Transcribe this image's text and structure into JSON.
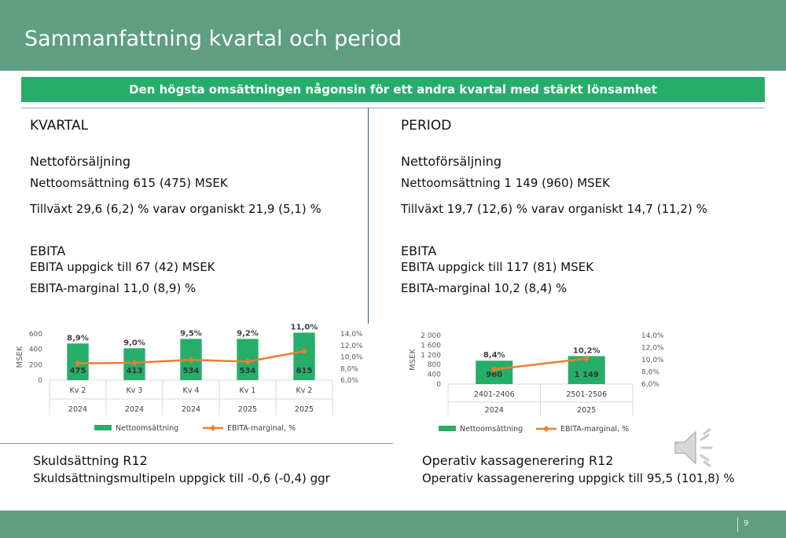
{
  "header": {
    "title": "Sammanfattning kvartal och period"
  },
  "banner": {
    "text": "Den högsta omsättningen någonsin för ett andra kvartal med stärkt lönsamhet"
  },
  "quarter": {
    "heading": "KVARTAL",
    "sales_heading": "Nettoförsäljning",
    "sales_line1": "Nettoomsättning 615 (475) MSEK",
    "sales_line2": "Tillväxt 29,6 (6,2) % varav organiskt 21,9 (5,1) %",
    "ebita_heading": "EBITA",
    "ebita_line1": "EBITA uppgick till 67 (42) MSEK",
    "ebita_line2": "EBITA-marginal 11,0 (8,9) %"
  },
  "period": {
    "heading": "PERIOD",
    "sales_heading": "Nettoförsäljning",
    "sales_line1": "Nettoomsättning 1 149 (960) MSEK",
    "sales_line2": "Tillväxt 19,7 (12,6) % varav organiskt 14,7 (11,2) %",
    "ebita_heading": "EBITA",
    "ebita_line1": "EBITA uppgick till 117 (81) MSEK",
    "ebita_line2": "EBITA-marginal 10,2 (8,4) %"
  },
  "debt": {
    "heading": "Skuldsättning R12",
    "text": "Skuldsättningsmultipeln uppgick till -0,6 (-0,4) ggr"
  },
  "cash": {
    "heading": "Operativ kassagenerering R12",
    "text": "Operativ kassagenerering uppgick till 95,5 (101,8) %"
  },
  "footer": {
    "page_number": "9"
  },
  "icons": {
    "speaker": "speaker-icon"
  },
  "colors": {
    "header_bg": "#5f9e82",
    "banner_bg": "#27ad6a",
    "bar": "#27ad6a",
    "line": "#ed7d31"
  },
  "chart_data": [
    {
      "type": "bar",
      "categories": [
        "Kv 2",
        "Kv 3",
        "Kv 4",
        "Kv 1",
        "Kv 2"
      ],
      "group_labels": [
        "2024",
        "2024",
        "2024",
        "2025",
        "2025"
      ],
      "series": [
        {
          "name": "Nettoomsättning",
          "type": "bar",
          "axis": "left",
          "values": [
            475,
            413,
            534,
            534,
            615
          ],
          "labels": [
            "475",
            "413",
            "534",
            "534",
            "615"
          ]
        },
        {
          "name": "EBITA-marginal, %",
          "type": "line",
          "axis": "right",
          "values": [
            8.9,
            9.0,
            9.5,
            9.2,
            11.0
          ],
          "labels": [
            "8,9%",
            "9,0%",
            "9,5%",
            "9,2%",
            "11,0%"
          ]
        }
      ],
      "ylabel": "MSEK",
      "ylim": [
        0,
        600
      ],
      "yticks": [
        "0",
        "200",
        "400",
        "600"
      ],
      "y2lim": [
        6,
        14
      ],
      "y2ticks": [
        "6,0%",
        "8,0%",
        "10,0%",
        "12,0%",
        "14,0%"
      ],
      "legend": "bottom"
    },
    {
      "type": "bar",
      "categories": [
        "2401-2406",
        "2501-2506"
      ],
      "group_labels": [
        "2024",
        "2025"
      ],
      "series": [
        {
          "name": "Nettoomsättning",
          "type": "bar",
          "axis": "left",
          "values": [
            960,
            1149
          ],
          "labels": [
            "960",
            "1 149"
          ]
        },
        {
          "name": "EBITA-marginal, %",
          "type": "line",
          "axis": "right",
          "values": [
            8.4,
            10.2
          ],
          "labels": [
            "8,4%",
            "10,2%"
          ]
        }
      ],
      "ylabel": "MSEK",
      "ylim": [
        0,
        2000
      ],
      "yticks": [
        "0",
        "400",
        "800",
        "1 200",
        "1 600",
        "2 000"
      ],
      "y2lim": [
        6,
        14
      ],
      "y2ticks": [
        "6,0%",
        "8,0%",
        "10,0%",
        "12,0%",
        "14,0%"
      ],
      "legend": "bottom"
    }
  ]
}
